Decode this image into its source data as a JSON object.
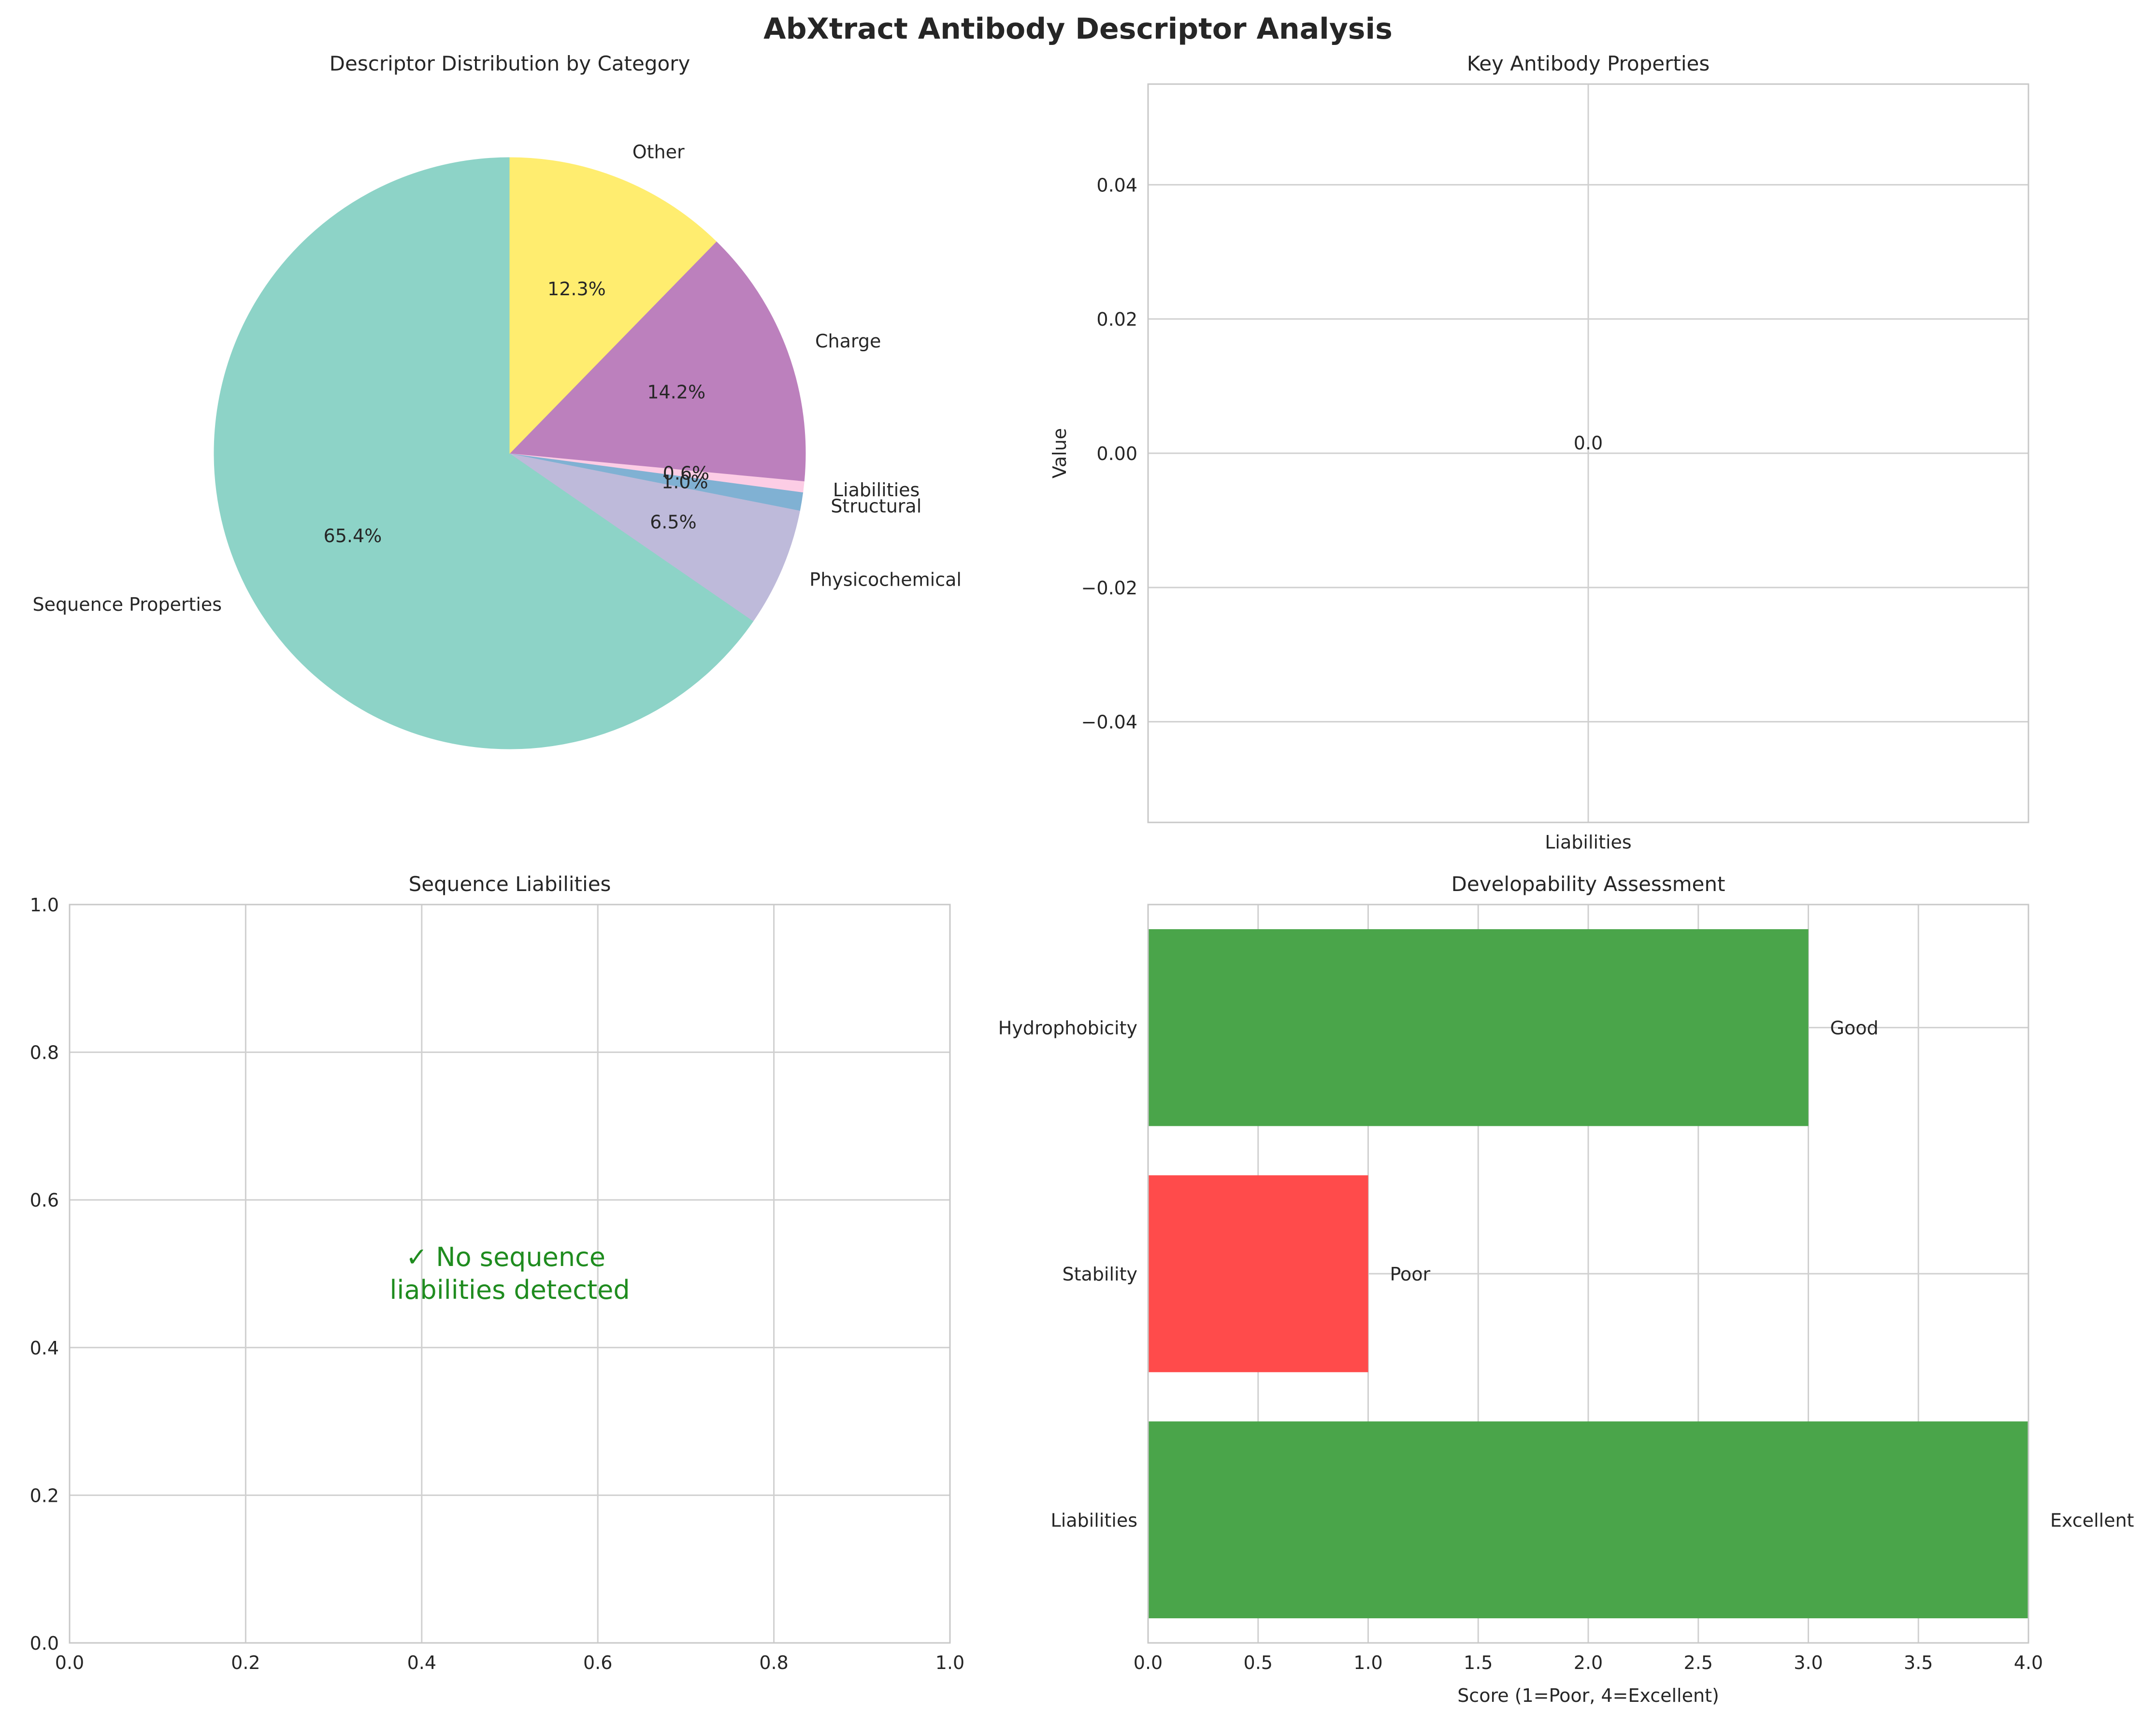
{
  "title": "AbXtract Antibody Descriptor Analysis",
  "colors": {
    "grid": "#d0d0d0",
    "spine": "#c8c8c8",
    "text": "#262626",
    "good": "#4aa54a",
    "poor": "#ff4b4b",
    "message": "#1f8c1f"
  },
  "chart_data": [
    {
      "type": "pie",
      "title": "Descriptor Distribution by Category",
      "start_angle_deg": 90,
      "direction": "counterclockwise",
      "labels": [
        "Sequence Properties",
        "Physicochemical",
        "Structural",
        "Liabilities",
        "Charge",
        "Other"
      ],
      "values": [
        65.4,
        6.5,
        1.0,
        0.6,
        14.2,
        12.3
      ],
      "pct_labels": [
        "65.4%",
        "6.5%",
        "1.0%",
        "0.6%",
        "14.2%",
        "12.3%"
      ],
      "colors": [
        "#8dd3c7",
        "#bebada",
        "#80b1d3",
        "#fccde5",
        "#bc80bd",
        "#ffed6f"
      ]
    },
    {
      "type": "bar",
      "title": "Key Antibody Properties",
      "ylabel": "Value",
      "xlabel": "",
      "categories": [
        "Liabilities"
      ],
      "values": [
        0.0
      ],
      "value_labels": [
        "0.0"
      ],
      "ylim": [
        -0.055,
        0.055
      ],
      "yticks": [
        -0.04,
        -0.02,
        0.0,
        0.02,
        0.04
      ],
      "ytick_labels": [
        "−0.04",
        "−0.02",
        "0.00",
        "0.02",
        "0.04"
      ],
      "grid": true
    },
    {
      "type": "table",
      "title": "Sequence Liabilities",
      "message_lines": [
        "✓ No sequence",
        "liabilities detected"
      ],
      "xlim": [
        0,
        1
      ],
      "ylim": [
        0,
        1
      ],
      "xticks": [
        "0.0",
        "0.2",
        "0.4",
        "0.6",
        "0.8",
        "1.0"
      ],
      "yticks": [
        "0.0",
        "0.2",
        "0.4",
        "0.6",
        "0.8",
        "1.0"
      ],
      "grid": true
    },
    {
      "type": "bar",
      "orientation": "horizontal",
      "title": "Developability Assessment",
      "xlabel": "Score (1=Poor, 4=Excellent)",
      "categories": [
        "Liabilities",
        "Stability",
        "Hydrophobicity"
      ],
      "values": [
        4,
        1,
        3
      ],
      "value_labels": [
        "Excellent",
        "Poor",
        "Good"
      ],
      "bar_colors": [
        "#4aa54a",
        "#ff4b4b",
        "#4aa54a"
      ],
      "xlim": [
        0,
        4
      ],
      "xticks": [
        "0.0",
        "0.5",
        "1.0",
        "1.5",
        "2.0",
        "2.5",
        "3.0",
        "3.5",
        "4.0"
      ],
      "grid": true
    }
  ]
}
